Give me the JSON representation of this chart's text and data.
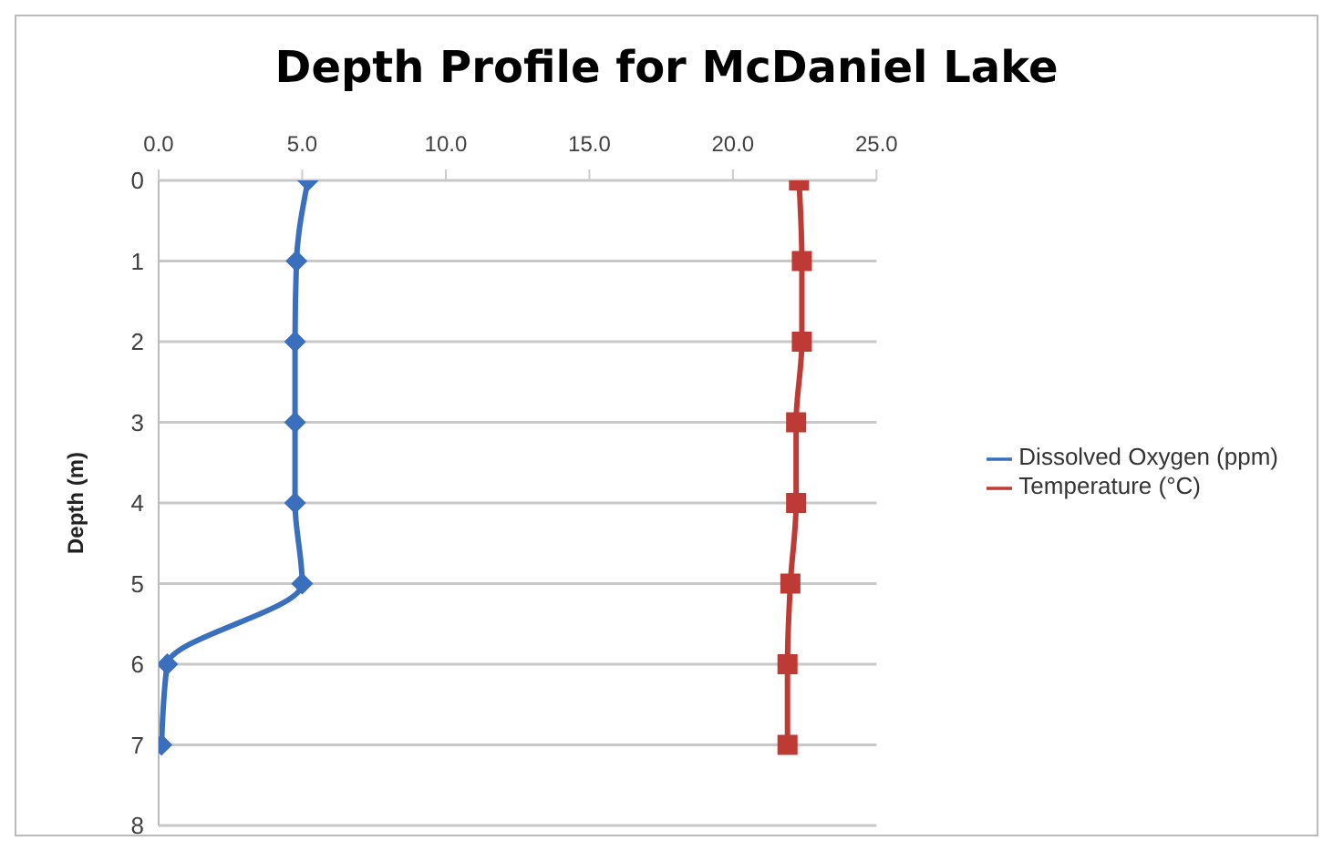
{
  "chart_data": {
    "type": "line",
    "title": "Depth Profile for McDaniel Lake",
    "ylabel": "Depth (m)",
    "x": [
      0,
      1,
      2,
      3,
      4,
      5,
      6,
      7
    ],
    "series": [
      {
        "name": "Dissolved Oxygen (ppm)",
        "color": "#3a6fbe",
        "marker": "diamond",
        "values": [
          5.2,
          4.8,
          4.75,
          4.75,
          4.75,
          5.0,
          0.3,
          0.1
        ]
      },
      {
        "name": "Temperature (°C)",
        "color": "#be3a34",
        "marker": "square",
        "values": [
          22.3,
          22.4,
          22.4,
          22.2,
          22.2,
          22.0,
          21.9,
          21.9
        ]
      }
    ],
    "orientation": "horizontal",
    "xlim": [
      0,
      25
    ],
    "xticks": [
      {
        "value": 0,
        "label": "0.0"
      },
      {
        "value": 5,
        "label": "5.0"
      },
      {
        "value": 10,
        "label": "10.0"
      },
      {
        "value": 15,
        "label": "15.0"
      },
      {
        "value": 20,
        "label": "20.0"
      },
      {
        "value": 25,
        "label": "25.0"
      }
    ],
    "ylim": [
      8,
      0
    ],
    "yticks": [
      0,
      1,
      2,
      3,
      4,
      5,
      6,
      7,
      8
    ],
    "grid": "y",
    "legend": "right",
    "line_style": "solid"
  }
}
